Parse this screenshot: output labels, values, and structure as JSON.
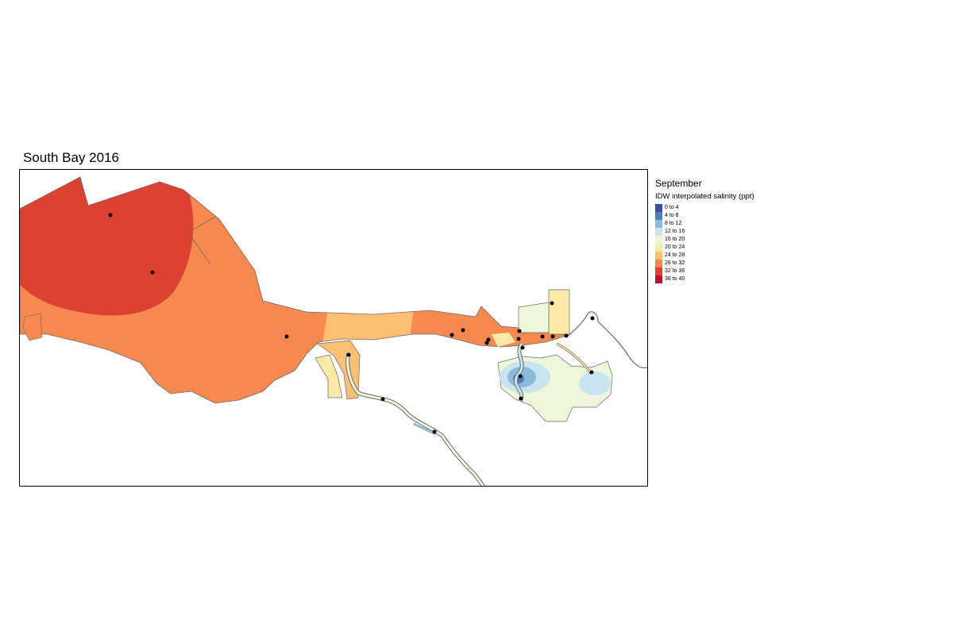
{
  "map": {
    "title": "South Bay 2016",
    "legend": {
      "month": "September",
      "title": "IDW interpolated salinity (ppt)",
      "classes": [
        {
          "label": "0 to 4",
          "color": "#3b4ba0"
        },
        {
          "label": "4 to 8",
          "color": "#4f7dbb"
        },
        {
          "label": "8 to 12",
          "color": "#8cbadb"
        },
        {
          "label": "12 to 16",
          "color": "#c8e4ee"
        },
        {
          "label": "16 to 20",
          "color": "#eef6dc"
        },
        {
          "label": "20 to 24",
          "color": "#fbe9a6"
        },
        {
          "label": "24 to 28",
          "color": "#fcbf74"
        },
        {
          "label": "28 to 32",
          "color": "#f5894f"
        },
        {
          "label": "32 to 36",
          "color": "#dd4230"
        },
        {
          "label": "36 to 40",
          "color": "#b31530"
        }
      ]
    },
    "outline_color": "#6b6b6b",
    "point_color": "#000000"
  }
}
